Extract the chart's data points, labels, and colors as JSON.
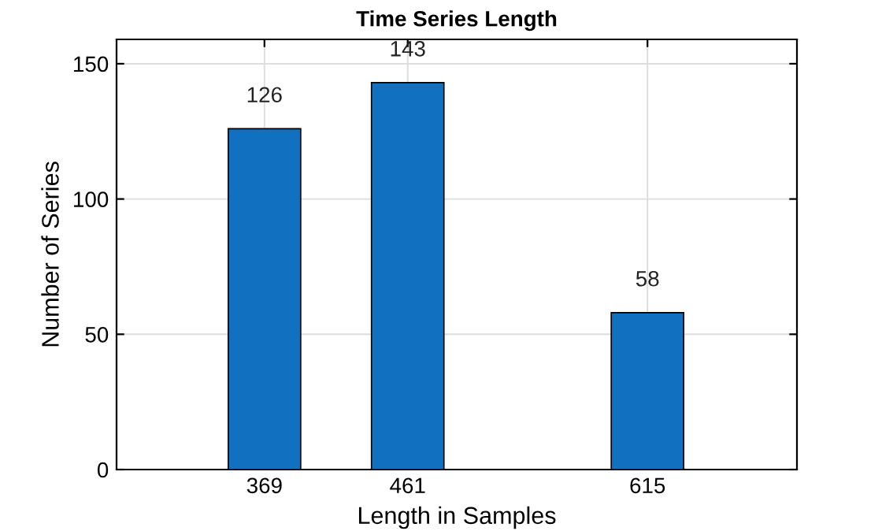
{
  "chart_data": {
    "type": "bar",
    "title": "Time Series Length",
    "xlabel": "Length in Samples",
    "ylabel": "Number of Series",
    "x": [
      369,
      461,
      615
    ],
    "values": [
      126,
      143,
      58
    ],
    "color": "#1170c0",
    "xlim": [
      274,
      711
    ],
    "xticks": [
      369,
      461,
      615
    ],
    "ylim": [
      0,
      159
    ],
    "yticks": [
      0,
      50,
      100,
      150
    ],
    "grid": true,
    "data_labels": true
  }
}
